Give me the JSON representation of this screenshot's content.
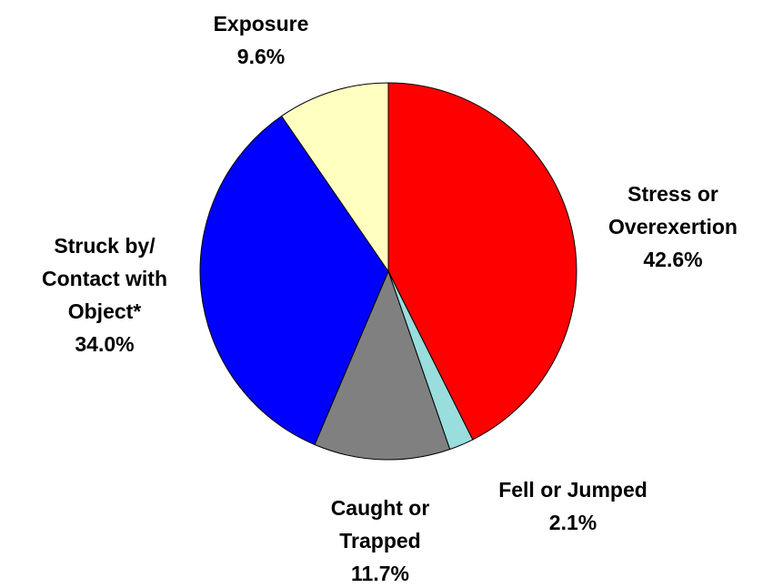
{
  "chart_data": {
    "type": "pie",
    "categories": [
      "Stress or Overexertion",
      "Fell or Jumped",
      "Caught or Trapped",
      "Struck by/ Contact with Object*",
      "Exposure"
    ],
    "values": [
      42.6,
      2.1,
      11.7,
      34.0,
      9.6
    ],
    "value_labels": [
      "42.6%",
      "2.1%",
      "11.7%",
      "34.0%",
      "9.6%"
    ],
    "colors": [
      "#ff0000",
      "#99dddd",
      "#808080",
      "#0000ff",
      "#ffffc0"
    ]
  }
}
